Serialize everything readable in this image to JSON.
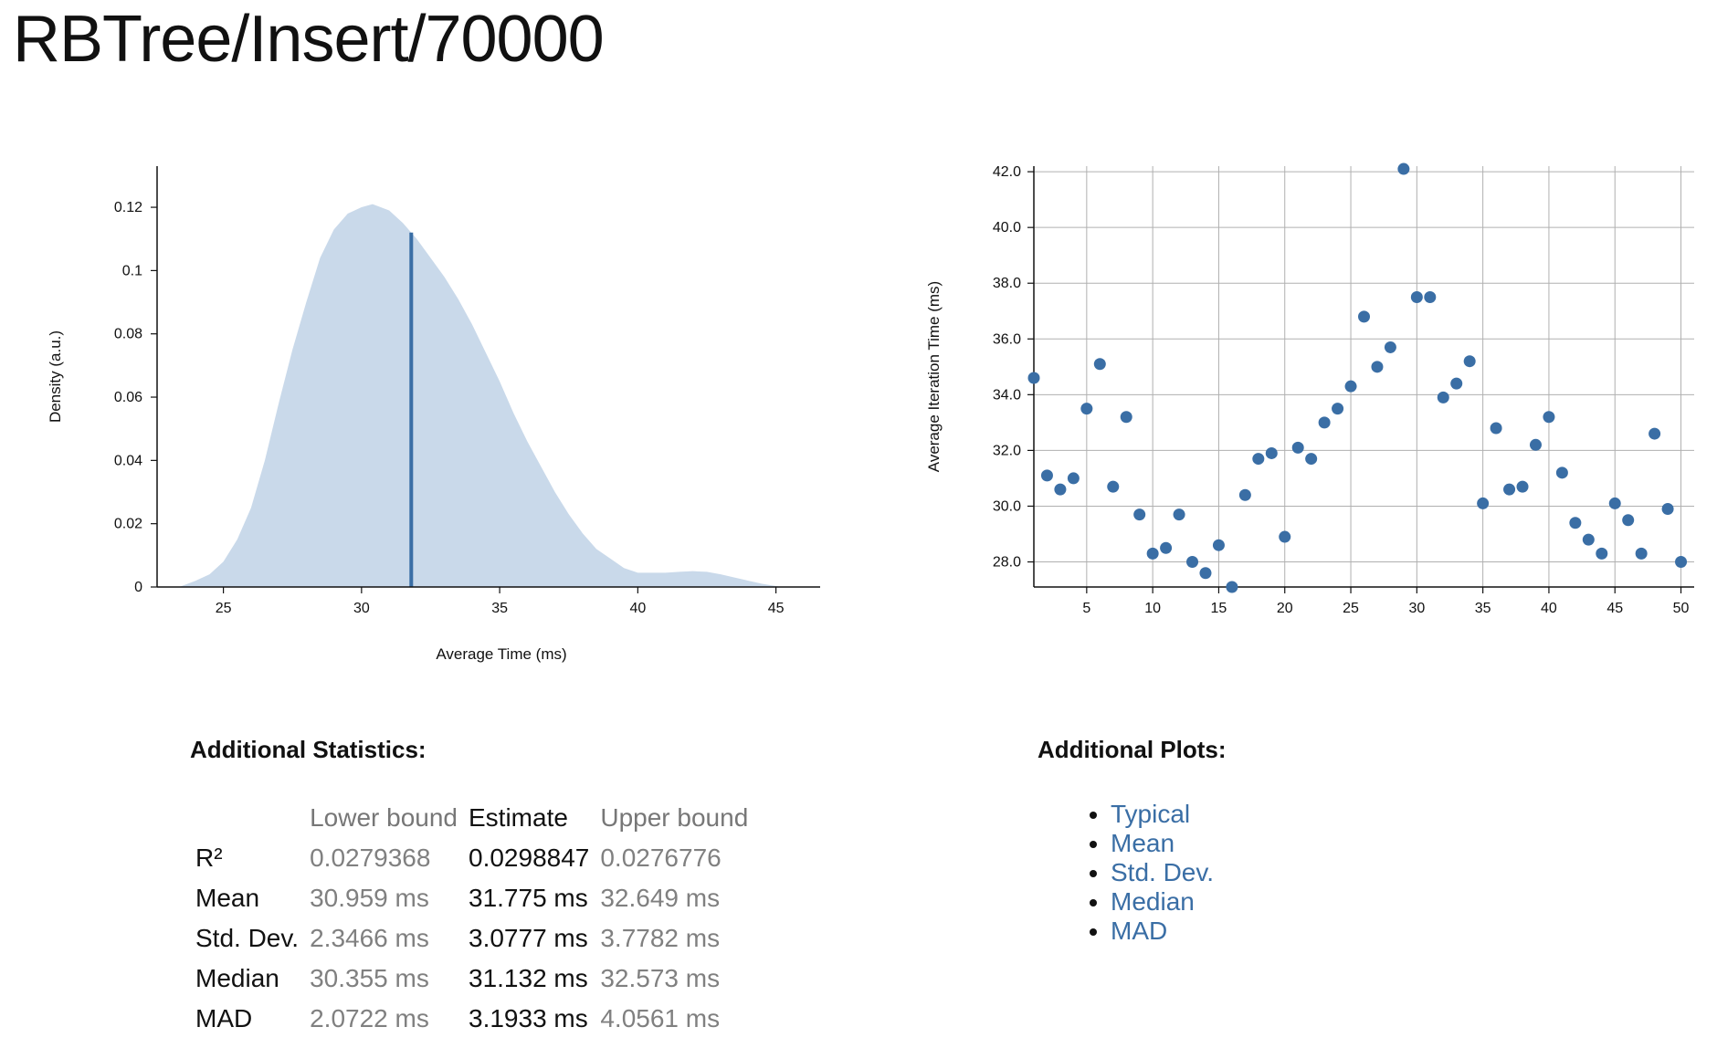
{
  "page": {
    "title": "RBTree/Insert/70000"
  },
  "chart_data": [
    {
      "type": "area",
      "title": "",
      "xlabel": "Average Time (ms)",
      "ylabel": "Density (a.u.)",
      "xlim": [
        22.6,
        46.6
      ],
      "ylim": [
        0,
        0.133
      ],
      "xticks": [
        25,
        30,
        35,
        40,
        45
      ],
      "yticks": [
        0,
        0.02,
        0.04,
        0.06,
        0.08,
        0.1,
        0.12
      ],
      "ytick_labels": [
        "0",
        "0.02",
        "0.04",
        "0.06",
        "0.08",
        "0.1",
        "0.12"
      ],
      "x": [
        23.4,
        24,
        24.5,
        25,
        25.5,
        26,
        26.5,
        27,
        27.5,
        28,
        28.5,
        29,
        29.5,
        30,
        30.4,
        31,
        31.5,
        32,
        32.5,
        33,
        33.5,
        34,
        34.5,
        35,
        35.5,
        36,
        36.5,
        37,
        37.5,
        38,
        38.5,
        39,
        39.5,
        40,
        40.5,
        41,
        41.5,
        42,
        42.5,
        43,
        43.5,
        44,
        44.5,
        45.2
      ],
      "series": [
        {
          "name": "Density",
          "values": [
            0,
            0.002,
            0.004,
            0.008,
            0.015,
            0.025,
            0.04,
            0.058,
            0.075,
            0.09,
            0.104,
            0.113,
            0.118,
            0.12,
            0.121,
            0.119,
            0.115,
            0.11,
            0.104,
            0.098,
            0.091,
            0.083,
            0.074,
            0.065,
            0.055,
            0.046,
            0.038,
            0.03,
            0.023,
            0.017,
            0.012,
            0.009,
            0.006,
            0.0045,
            0.0045,
            0.0045,
            0.0048,
            0.005,
            0.0048,
            0.004,
            0.003,
            0.002,
            0.001,
            0
          ]
        }
      ],
      "annotations": [
        {
          "type": "vline",
          "name": "mean-estimate",
          "x": 31.8,
          "y": 0.112
        }
      ],
      "colors": {
        "fill": "#c9d9ea",
        "line": "#3a6ea5"
      }
    },
    {
      "type": "scatter",
      "title": "",
      "xlabel": "",
      "ylabel": "Average Iteration Time (ms)",
      "xlim": [
        1,
        51
      ],
      "ylim": [
        27.1,
        42.2
      ],
      "grid": true,
      "xticks": [
        5,
        10,
        15,
        20,
        25,
        30,
        35,
        40,
        45,
        50
      ],
      "yticks": [
        28,
        30,
        32,
        34,
        36,
        38,
        40,
        42
      ],
      "ytick_labels": [
        "28.0",
        "30.0",
        "32.0",
        "34.0",
        "36.0",
        "38.0",
        "40.0",
        "42.0"
      ],
      "x": [
        1,
        2,
        3,
        4,
        5,
        6,
        7,
        8,
        9,
        10,
        11,
        12,
        13,
        14,
        15,
        16,
        17,
        18,
        19,
        20,
        21,
        22,
        23,
        24,
        25,
        26,
        27,
        28,
        29,
        30,
        31,
        32,
        33,
        34,
        35,
        36,
        37,
        38,
        39,
        40,
        41,
        42,
        43,
        44,
        45,
        46,
        47,
        48,
        49,
        50
      ],
      "series": [
        {
          "name": "Samples",
          "values": [
            34.6,
            31.1,
            30.6,
            31.0,
            33.5,
            35.1,
            30.7,
            33.2,
            29.7,
            28.3,
            28.5,
            29.7,
            28.0,
            27.6,
            28.6,
            27.1,
            30.4,
            31.7,
            31.9,
            28.9,
            32.1,
            31.7,
            33.0,
            33.5,
            34.3,
            36.8,
            35.0,
            35.7,
            42.1,
            37.5,
            37.5,
            33.9,
            34.4,
            35.2,
            30.1,
            32.8,
            30.6,
            30.7,
            32.2,
            33.2,
            31.2,
            29.4,
            28.8,
            28.3,
            30.1,
            29.5,
            28.3,
            32.6,
            29.9,
            28.0
          ]
        }
      ],
      "colors": {
        "point": "#3a6ea5",
        "grid": "#b0b0b0"
      }
    }
  ],
  "stats": {
    "heading": "Additional Statistics:",
    "columns": [
      "",
      "Lower bound",
      "Estimate",
      "Upper bound"
    ],
    "rows": [
      {
        "label": "R²",
        "lower": "0.0279368",
        "estimate": "0.0298847",
        "upper": "0.0276776"
      },
      {
        "label": "Mean",
        "lower": "30.959 ms",
        "estimate": "31.775 ms",
        "upper": "32.649 ms"
      },
      {
        "label": "Std. Dev.",
        "lower": "2.3466 ms",
        "estimate": "3.0777 ms",
        "upper": "3.7782 ms"
      },
      {
        "label": "Median",
        "lower": "30.355 ms",
        "estimate": "31.132 ms",
        "upper": "32.573 ms"
      },
      {
        "label": "MAD",
        "lower": "2.0722 ms",
        "estimate": "3.1933 ms",
        "upper": "4.0561 ms"
      }
    ]
  },
  "plots": {
    "heading": "Additional Plots:",
    "links": [
      "Typical",
      "Mean",
      "Std. Dev.",
      "Median",
      "MAD"
    ]
  }
}
